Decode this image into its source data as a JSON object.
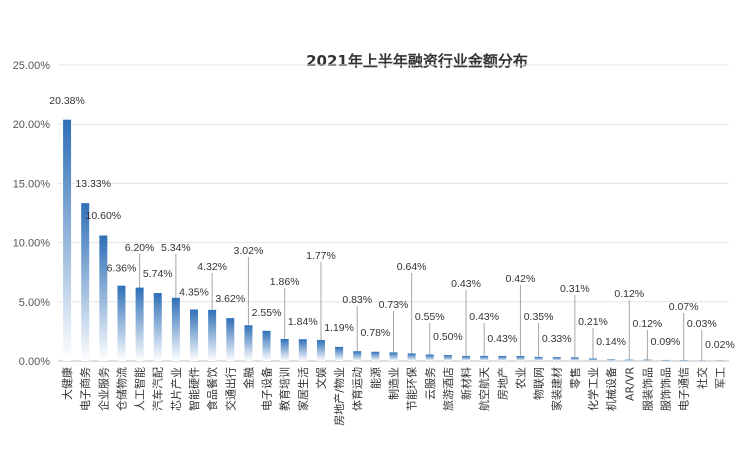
{
  "chart_data": {
    "type": "bar",
    "title": "2021年上半年融资行业金额分布",
    "xlabel": "",
    "ylabel": "",
    "ylim": [
      0,
      25
    ],
    "yticks": [
      "0.00%",
      "5.00%",
      "10.00%",
      "15.00%",
      "20.00%",
      "25.00%"
    ],
    "grid": true,
    "bar_color": "#2e6fb7",
    "categories": [
      "大健康",
      "电子商务",
      "企业服务",
      "仓储物流",
      "人工智能",
      "汽车汽配",
      "芯片产业",
      "智能硬件",
      "食品餐饮",
      "交通出行",
      "金融",
      "电子设备",
      "教育培训",
      "家居生活",
      "文娱",
      "房地产/物业",
      "体育运动",
      "能源",
      "制造业",
      "节能环保",
      "云服务",
      "旅游酒店",
      "新材料",
      "航空航天",
      "房地产",
      "农业",
      "物联网",
      "家装建材",
      "零售",
      "化学工业",
      "机械设备",
      "AR/VR",
      "服装饰品",
      "服饰饰品",
      "电子通信",
      "社交",
      "军工"
    ],
    "values": [
      20.38,
      13.33,
      10.6,
      6.36,
      6.2,
      5.74,
      5.34,
      4.35,
      4.32,
      3.62,
      3.02,
      2.55,
      1.86,
      1.84,
      1.77,
      1.19,
      0.83,
      0.78,
      0.73,
      0.64,
      0.55,
      0.5,
      0.43,
      0.43,
      0.43,
      0.42,
      0.35,
      0.33,
      0.31,
      0.21,
      0.14,
      0.12,
      0.12,
      0.09,
      0.07,
      0.03,
      0.02
    ],
    "labels": [
      "20.38%",
      "13.33%",
      "10.60%",
      "6.36%",
      "6.20%",
      "5.74%",
      "5.34%",
      "4.35%",
      "4.32%",
      "3.62%",
      "3.02%",
      "2.55%",
      "1.86%",
      "1.84%",
      "1.77%",
      "1.19%",
      "0.83%",
      "0.78%",
      "0.73%",
      "0.64%",
      "0.55%",
      "0.50%",
      "0.43%",
      "0.43%",
      "0.43%",
      "0.42%",
      "0.35%",
      "0.33%",
      "0.31%",
      "0.21%",
      "0.14%",
      "0.12%",
      "0.12%",
      "0.09%",
      "0.07%",
      "0.03%",
      "0.02%"
    ]
  }
}
